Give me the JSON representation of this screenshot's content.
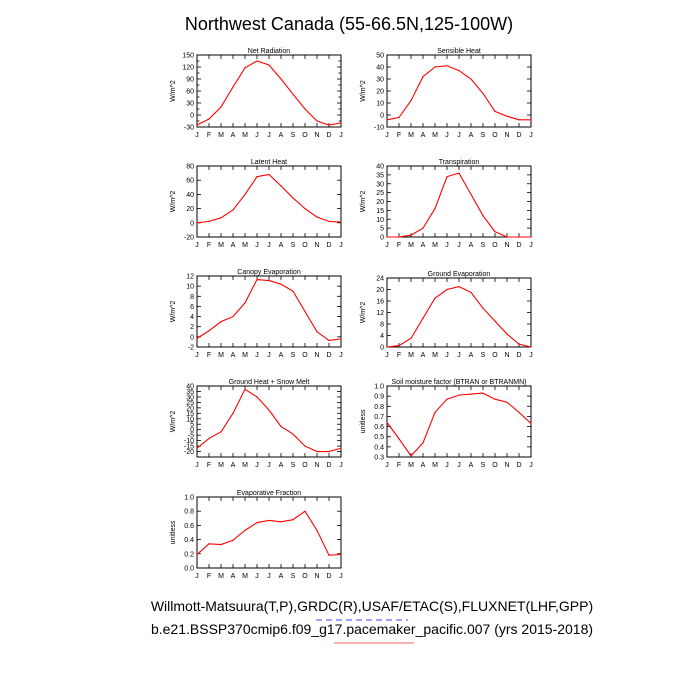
{
  "page": {
    "title": "Northwest Canada (55-66.5N,125-100W)",
    "caption1": "Willmott-Matsuura(T,P),GRDC(R),USAF/ETAC(S),FLUXNET(LHF,GPP)",
    "caption2": "b.e21.BSSP370cmip6.f09_g17.pacemaker_pacific.007 (yrs 2015-2018)"
  },
  "colors": {
    "series": "#ff0000",
    "underline_blue": "#4040ff",
    "underline_red": "#ff6060"
  },
  "chart_data": [
    {
      "type": "line",
      "title": "Net Radiation",
      "ylabel": "W/m^2",
      "categories": [
        "J",
        "F",
        "M",
        "A",
        "M",
        "J",
        "J",
        "A",
        "S",
        "O",
        "N",
        "D",
        "J"
      ],
      "ylim": [
        -30,
        150
      ],
      "yticks": [
        -30,
        -15,
        0,
        15,
        30,
        45,
        60,
        75,
        90,
        105,
        120,
        135,
        150
      ],
      "ytick_labels": [
        "-30",
        "",
        "0",
        "",
        "30",
        "",
        "60",
        "",
        "90",
        "",
        "120",
        "",
        "150"
      ],
      "series": [
        {
          "values": [
            -25,
            -10,
            20,
            70,
            118,
            135,
            125,
            90,
            52,
            15,
            -15,
            -25,
            -20
          ]
        }
      ]
    },
    {
      "type": "line",
      "title": "Sensible Heat",
      "ylabel": "W/m^2",
      "categories": [
        "J",
        "F",
        "M",
        "A",
        "M",
        "J",
        "J",
        "A",
        "S",
        "O",
        "N",
        "D",
        "J"
      ],
      "ylim": [
        -10,
        50
      ],
      "yticks": [
        -10,
        0,
        10,
        20,
        30,
        40,
        50
      ],
      "ytick_labels": [
        "-10",
        "0",
        "10",
        "20",
        "30",
        "40",
        "50"
      ],
      "series": [
        {
          "values": [
            -4,
            -2,
            12,
            32,
            40,
            41,
            37,
            30,
            18,
            3,
            -1,
            -4,
            -4
          ]
        }
      ]
    },
    {
      "type": "line",
      "title": "Latent Heat",
      "ylabel": "W/m^2",
      "categories": [
        "J",
        "F",
        "M",
        "A",
        "M",
        "J",
        "J",
        "A",
        "S",
        "O",
        "N",
        "D",
        "J"
      ],
      "ylim": [
        -20,
        80
      ],
      "yticks": [
        -20,
        0,
        20,
        40,
        60,
        80
      ],
      "ytick_labels": [
        "-20",
        "0",
        "20",
        "40",
        "60",
        "80"
      ],
      "series": [
        {
          "values": [
            0,
            2,
            7,
            18,
            40,
            65,
            68,
            52,
            35,
            20,
            8,
            2,
            1
          ]
        }
      ]
    },
    {
      "type": "line",
      "title": "Transpiration",
      "ylabel": "W/m^2",
      "categories": [
        "J",
        "F",
        "M",
        "A",
        "M",
        "J",
        "J",
        "A",
        "S",
        "O",
        "N",
        "D",
        "J"
      ],
      "ylim": [
        0,
        40
      ],
      "yticks": [
        0,
        5,
        10,
        15,
        20,
        25,
        30,
        35,
        40
      ],
      "ytick_labels": [
        "0",
        "5",
        "10",
        "15",
        "20",
        "25",
        "30",
        "35",
        "40"
      ],
      "series": [
        {
          "values": [
            0,
            0,
            1,
            5,
            16,
            34,
            36,
            24,
            12,
            3,
            0,
            0,
            0
          ]
        }
      ]
    },
    {
      "type": "line",
      "title": "Canopy Evaporation",
      "ylabel": "W/m^2",
      "categories": [
        "J",
        "F",
        "M",
        "A",
        "M",
        "J",
        "J",
        "A",
        "S",
        "O",
        "N",
        "D",
        "J"
      ],
      "ylim": [
        -2,
        12
      ],
      "yticks": [
        -2,
        0,
        2,
        4,
        6,
        8,
        10,
        12
      ],
      "ytick_labels": [
        "-2",
        "0",
        "2",
        "4",
        "6",
        "8",
        "10",
        "12"
      ],
      "series": [
        {
          "values": [
            -0.3,
            1.2,
            3,
            4,
            6.7,
            11.3,
            11.1,
            10.4,
            9,
            5,
            1,
            -0.7,
            -0.4
          ]
        }
      ]
    },
    {
      "type": "line",
      "title": "Ground Evaporation",
      "ylabel": "W/m^2",
      "categories": [
        "J",
        "F",
        "M",
        "A",
        "M",
        "J",
        "J",
        "A",
        "S",
        "O",
        "N",
        "D",
        "J"
      ],
      "ylim": [
        0,
        24
      ],
      "yticks": [
        0,
        4,
        8,
        12,
        16,
        20,
        24
      ],
      "ytick_labels": [
        "0",
        "4",
        "8",
        "12",
        "16",
        "20",
        "24"
      ],
      "series": [
        {
          "values": [
            0,
            0.5,
            3,
            10,
            17,
            20,
            21,
            19,
            13.5,
            9,
            4.5,
            1,
            0
          ]
        }
      ]
    },
    {
      "type": "line",
      "title": "Ground Heat + Snow Melt",
      "ylabel": "W/m^2",
      "categories": [
        "J",
        "F",
        "M",
        "A",
        "M",
        "J",
        "J",
        "A",
        "S",
        "O",
        "N",
        "D",
        "J"
      ],
      "ylim": [
        -25,
        40
      ],
      "yticks": [
        -20,
        -15,
        -10,
        -5,
        0,
        5,
        10,
        15,
        20,
        25,
        30,
        35,
        40
      ],
      "ytick_labels": [
        "-20",
        "-15",
        "-10",
        "-5",
        "0",
        "5",
        "10",
        "15",
        "20",
        "25",
        "30",
        "35",
        "40"
      ],
      "series": [
        {
          "values": [
            -17,
            -8,
            -2,
            15,
            37,
            30,
            18,
            3,
            -4,
            -15,
            -20,
            -20,
            -17
          ]
        }
      ]
    },
    {
      "type": "line",
      "title": "Soil moisture factor (BTRAN or BTRANMN)",
      "ylabel": "unitless",
      "categories": [
        "J",
        "F",
        "M",
        "A",
        "M",
        "J",
        "J",
        "A",
        "S",
        "O",
        "N",
        "D",
        "J"
      ],
      "ylim": [
        0.3,
        1.0
      ],
      "yticks": [
        0.3,
        0.4,
        0.5,
        0.6,
        0.7,
        0.8,
        0.9,
        1.0
      ],
      "ytick_labels": [
        "0.3",
        "0.4",
        "0.5",
        "0.6",
        "0.7",
        "0.8",
        "0.9",
        "1.0"
      ],
      "series": [
        {
          "values": [
            0.64,
            0.48,
            0.31,
            0.44,
            0.74,
            0.87,
            0.91,
            0.92,
            0.93,
            0.87,
            0.84,
            0.74,
            0.63
          ]
        }
      ]
    },
    {
      "type": "line",
      "title": "Evaporative Fraction",
      "ylabel": "unitless",
      "categories": [
        "J",
        "F",
        "M",
        "A",
        "M",
        "J",
        "J",
        "A",
        "S",
        "O",
        "N",
        "D",
        "J"
      ],
      "ylim": [
        0,
        1.0
      ],
      "yticks": [
        0,
        0.2,
        0.4,
        0.6,
        0.8,
        1.0
      ],
      "ytick_labels": [
        "0.0",
        "0.2",
        "0.4",
        "0.6",
        "0.8",
        "1.0"
      ],
      "series": [
        {
          "values": [
            0.19,
            0.34,
            0.33,
            0.39,
            0.53,
            0.64,
            0.67,
            0.65,
            0.68,
            0.8,
            0.53,
            0.18,
            0.19
          ]
        }
      ]
    }
  ]
}
